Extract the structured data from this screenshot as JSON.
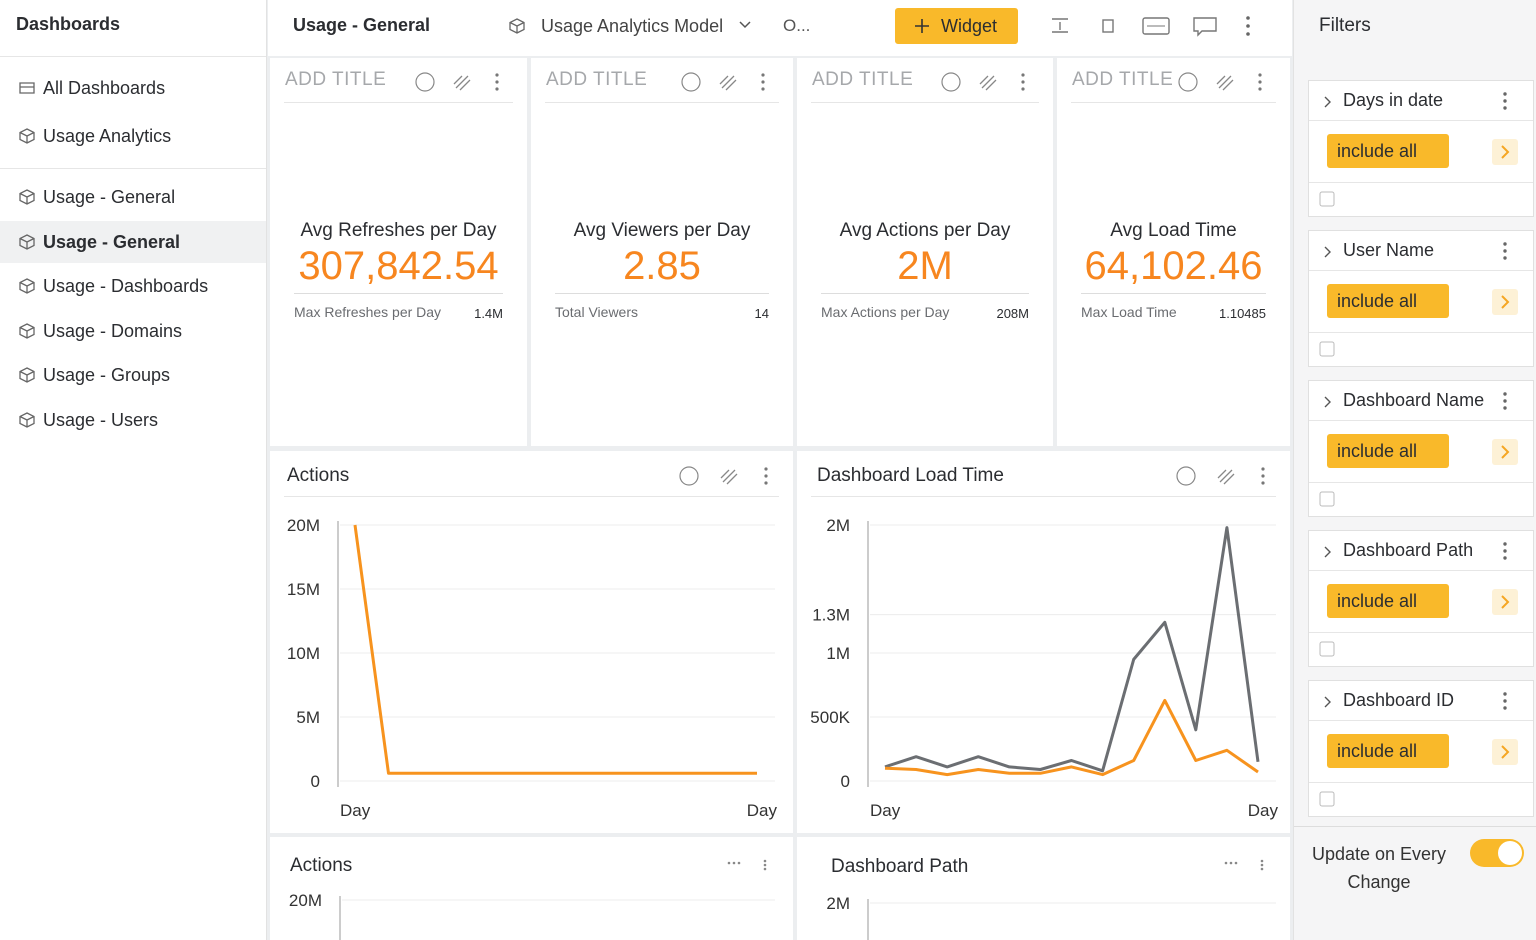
{
  "sidebar": {
    "title": "Dashboards",
    "top_items": [
      "All Dashboards",
      "Usage Analytics"
    ],
    "items": [
      {
        "label": "Usage - General",
        "selected": false
      },
      {
        "label": "Usage - General",
        "selected": true
      },
      {
        "label": "Usage - Dashboards",
        "selected": false
      },
      {
        "label": "Usage - Domains",
        "selected": false
      },
      {
        "label": "Usage - Groups",
        "selected": false
      },
      {
        "label": "Usage - Users",
        "selected": false
      }
    ]
  },
  "toolbar": {
    "title": "Usage - General",
    "model": "Usage Analytics Model",
    "status": "O...",
    "widget_button": "Widget"
  },
  "kpi_cards": [
    {
      "header": "ADD TITLE",
      "title": "Avg Refreshes per Day",
      "value": "307,842.54",
      "detail_label": "Max Refreshes per Day",
      "detail_value": "1.4M"
    },
    {
      "header": "ADD TITLE",
      "title": "Avg Viewers per Day",
      "value": "2.85",
      "detail_label": "Total Viewers",
      "detail_value": "14"
    },
    {
      "header": "ADD TITLE",
      "title": "Avg Actions per Day",
      "value": "2M",
      "detail_label": "Max Actions per Day",
      "detail_value": "208M"
    },
    {
      "header": "ADD TITLE",
      "title": "Avg Load Time",
      "value": "64,102.46",
      "detail_label": "Max Load Time",
      "detail_value": "1.10485"
    }
  ],
  "chart_data": [
    {
      "type": "line",
      "title": "Actions",
      "x_labels": [
        "Day",
        "Day"
      ],
      "ylim": [
        0,
        20000000
      ],
      "yticks": [
        0,
        {
          "value": 5000000,
          "label": "5M"
        },
        {
          "value": 10000000,
          "label": "10M"
        },
        {
          "value": 15000000,
          "label": "15M"
        },
        {
          "value": 20000000,
          "label": "20M"
        }
      ],
      "grid": true,
      "series": [
        {
          "color": "#f7931e",
          "values": [
            20000000,
            600000,
            600000,
            600000,
            600000,
            600000,
            600000,
            600000,
            600000,
            600000,
            600000,
            600000,
            600000
          ]
        }
      ]
    },
    {
      "type": "line",
      "title": "Dashboard Load Time",
      "x_labels": [
        "Day",
        "Day"
      ],
      "ylim": [
        0,
        2000000
      ],
      "yticks": [
        0,
        {
          "value": 500000,
          "label": "500K"
        },
        {
          "value": 1000000,
          "label": "1M"
        },
        {
          "value": 1300000,
          "label": "1.3M"
        },
        {
          "value": 2000000,
          "label": "2M"
        }
      ],
      "grid": true,
      "series": [
        {
          "color": "#6b6e72",
          "values": [
            110000,
            190000,
            110000,
            190000,
            110000,
            90000,
            160000,
            80000,
            950000,
            1240000,
            400000,
            1980000,
            150000
          ]
        },
        {
          "color": "#f7931e",
          "values": [
            100000,
            90000,
            50000,
            90000,
            60000,
            60000,
            110000,
            50000,
            160000,
            630000,
            160000,
            240000,
            70000
          ]
        }
      ]
    },
    {
      "type": "line",
      "title": "Actions",
      "ylim": [
        0,
        20000000
      ],
      "yticks": [
        {
          "value": 20000000,
          "label": "20M"
        }
      ],
      "grid": true
    },
    {
      "type": "line",
      "title": "Dashboard Path",
      "ylim": [
        0,
        2000000
      ],
      "yticks": [
        {
          "value": 2000000,
          "label": "2M"
        }
      ],
      "grid": true
    }
  ],
  "filters": {
    "title": "Filters",
    "items": [
      {
        "name": "Days in date",
        "button": "include all"
      },
      {
        "name": "User Name",
        "button": "include all"
      },
      {
        "name": "Dashboard Name",
        "button": "include all"
      },
      {
        "name": "Dashboard Path",
        "button": "include all"
      },
      {
        "name": "Dashboard ID",
        "button": "include all"
      }
    ],
    "auto_update": "Update on Every Change",
    "auto_update_on": true
  }
}
